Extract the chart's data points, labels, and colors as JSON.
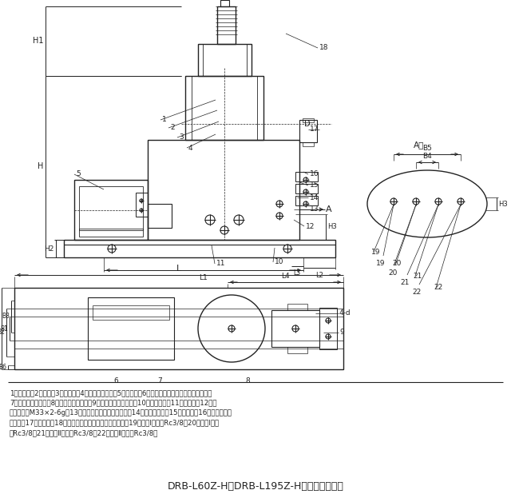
{
  "title": "DRB-L60Z-H、DRB-L195Z-H型电动泵外形图",
  "bg_color": "#ffffff",
  "line_color": "#222222",
  "text_color": "#222222",
  "cap1": "1、贯油器；2、泵体；3、排气塞；4、润滑油注入口；5、接线盒；6、排气阀（贯油器活塞下部空气）；",
  "cap2": "7、贯油器低位开关；8、贯油器高位开关；9、电磁换向限位开关；10、放油螺塞；11、油位计；12、润",
  "cap3": "滑脂补给口M33×2-6g；13、电磁换向阀压力调节螺栓；14、电磁换向阀；15、安全阀；16、排气阀（出",
  "cap4": "油口）；17、压力表；18、排气阀（贯油器活塞上部空气）；19、管路Ⅰ出油口Rc3/8；20、管路Ⅰ回油",
  "cap5": "口Rc3/8；21、管路Ⅱ回油口Rc3/8；22、管路Ⅱ出油口Rc3/8。"
}
